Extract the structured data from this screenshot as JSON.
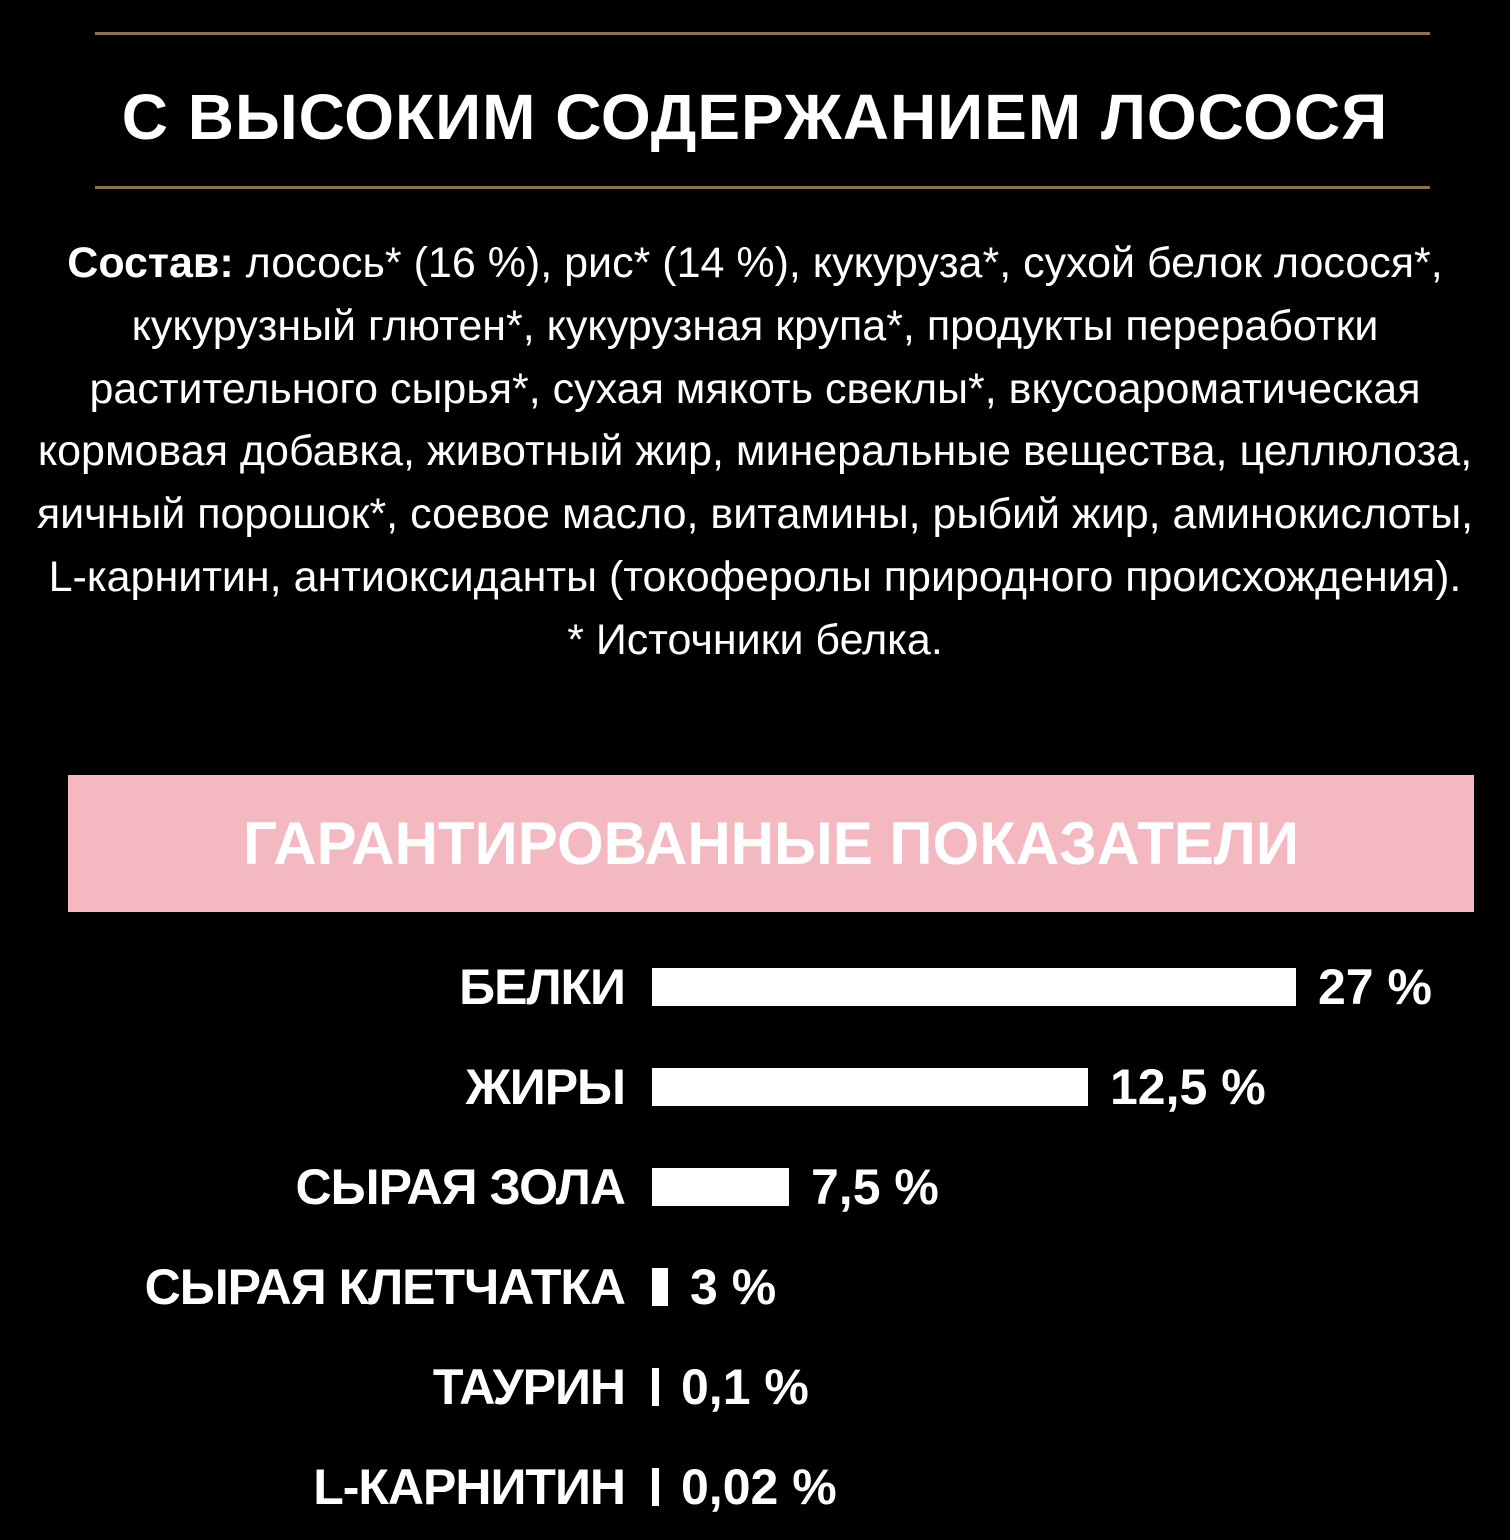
{
  "title": "С ВЫСОКИМ СОДЕРЖАНИЕМ ЛОСОСЯ",
  "composition": {
    "label": "Состав:",
    "text": "лосось* (16 %), рис* (14 %), кукуруза*, сухой белок лосося*, кукурузный глютен*, кукурузная крупа*, продукты переработки растительного сырья*, сухая мякоть свеклы*, вкусоароматическая кормовая добавка, животный жир, минеральные вещества, целлюлоза, яичный порошок*, соевое масло, витамины, рыбий жир, аминокислоты, L-карнитин, антиоксиданты (токоферолы природного происхождения).",
    "footnote": "* Источники белка."
  },
  "guaranteed": {
    "heading": "ГАРАНТИРОВАННЫЕ ПОКАЗАТЕЛИ",
    "heading_bg": "#f4b8c0",
    "rows": [
      {
        "label": "БЕЛКИ",
        "value": 27,
        "value_text": "27 %"
      },
      {
        "label": "ЖИРЫ",
        "value": 12.5,
        "value_text": "12,5 %"
      },
      {
        "label": "СЫРАЯ ЗОЛА",
        "value": 7.5,
        "value_text": "7,5 %"
      },
      {
        "label": "СЫРАЯ КЛЕТЧАТКА",
        "value": 3,
        "value_text": "3 %"
      },
      {
        "label": "ТАУРИН",
        "value": 0.1,
        "value_text": "0,1 %"
      },
      {
        "label": "L-КАРНИТИН",
        "value": 0.02,
        "value_text": "0,02 %"
      }
    ]
  },
  "colors": {
    "background": "#000000",
    "rule": "#8a7450",
    "text": "#ffffff"
  }
}
